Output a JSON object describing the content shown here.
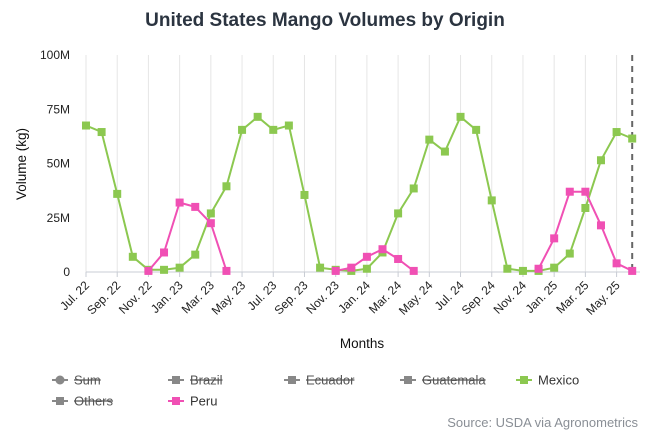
{
  "chart_data": {
    "type": "line",
    "title": "United States Mango Volumes by Origin",
    "xlabel": "Months",
    "ylabel": "Volume (kg)",
    "ylim": [
      0,
      100
    ],
    "y_ticks": [
      {
        "value": 0,
        "label": "0"
      },
      {
        "value": 25,
        "label": "25M"
      },
      {
        "value": 50,
        "label": "50M"
      },
      {
        "value": 75,
        "label": "75M"
      },
      {
        "value": 100,
        "label": "100M"
      }
    ],
    "x": [
      "Jul. 22",
      "Aug. 22",
      "Sep. 22",
      "Oct. 22",
      "Nov. 22",
      "Dec. 22",
      "Jan. 23",
      "Feb. 23",
      "Mar. 23",
      "Apr. 23",
      "May. 23",
      "Jun. 23",
      "Jul. 23",
      "Aug. 23",
      "Sep. 23",
      "Oct. 23",
      "Nov. 23",
      "Dec. 23",
      "Jan. 24",
      "Feb. 24",
      "Mar. 24",
      "Apr. 24",
      "May. 24",
      "Jun. 24",
      "Jul. 24",
      "Aug. 24",
      "Sep. 24",
      "Oct. 24",
      "Nov. 24",
      "Dec. 24",
      "Jan. 25",
      "Feb. 25",
      "Mar. 25",
      "Apr. 25",
      "May. 25",
      "Jun. 25"
    ],
    "x_tick_labels": [
      "Jul. 22",
      "Sep. 22",
      "Nov. 22",
      "Jan. 23",
      "Mar. 23",
      "May. 23",
      "Jul. 23",
      "Sep. 23",
      "Nov. 23",
      "Jan. 24",
      "Mar. 24",
      "May. 24",
      "Jul. 24",
      "Sep. 24",
      "Nov. 24",
      "Jan. 25",
      "Mar. 25",
      "May. 25"
    ],
    "grid": {
      "vertical": true,
      "horizontal": false
    },
    "series": [
      {
        "name": "Mexico",
        "color": "#8cc850",
        "values": [
          67.5,
          64.5,
          36,
          7,
          1,
          1,
          2,
          8,
          27,
          39.5,
          65.5,
          71.5,
          65.5,
          67.5,
          35.5,
          2,
          1,
          0.5,
          1.5,
          9,
          27,
          38.5,
          61,
          55.5,
          71.5,
          65.5,
          33,
          1.5,
          0.5,
          0.5,
          2,
          8.5,
          29.5,
          51.5,
          64.5,
          61.5
        ]
      },
      {
        "name": "Peru",
        "color": "#f050b4",
        "values": [
          null,
          null,
          null,
          null,
          0.5,
          9,
          32,
          30,
          22.5,
          0.5,
          null,
          null,
          null,
          null,
          null,
          null,
          0.5,
          2,
          7,
          10.5,
          6,
          0.5,
          null,
          null,
          null,
          null,
          null,
          null,
          null,
          1.5,
          15.5,
          37,
          37,
          21.5,
          4,
          0.5
        ]
      }
    ],
    "legend": {
      "placement": "bottom",
      "items": [
        {
          "name": "Sum",
          "hidden": true,
          "marker": "circle"
        },
        {
          "name": "Brazil",
          "hidden": true,
          "marker": "square"
        },
        {
          "name": "Ecuador",
          "hidden": true,
          "marker": "square"
        },
        {
          "name": "Guatemala",
          "hidden": true,
          "marker": "square"
        },
        {
          "name": "Mexico",
          "hidden": false,
          "marker": "square",
          "color": "#8cc850"
        },
        {
          "name": "Others",
          "hidden": true,
          "marker": "square"
        },
        {
          "name": "Peru",
          "hidden": false,
          "marker": "square",
          "color": "#f050b4"
        }
      ]
    },
    "source": "Source: USDA via Agronometrics"
  }
}
